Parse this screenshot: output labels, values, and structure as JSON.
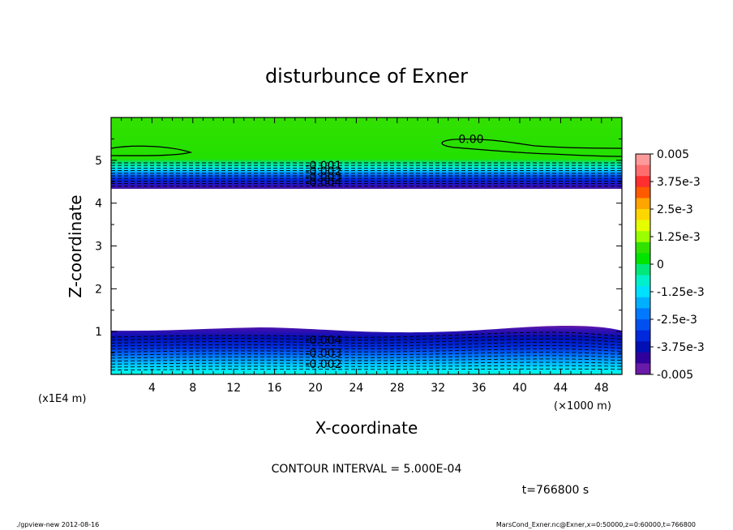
{
  "chart_data": {
    "type": "contour",
    "title": "disturbunce of Exner",
    "xlabel": "X-coordinate",
    "ylabel": "Z-coordinate",
    "x_unit": "(×1000 m)",
    "z_unit": "(x1E4 m)",
    "xlim": [
      0,
      50
    ],
    "ylim": [
      0,
      6
    ],
    "x_ticks": [
      4,
      8,
      12,
      16,
      20,
      24,
      28,
      32,
      36,
      40,
      44,
      48
    ],
    "y_ticks": [
      1,
      2,
      3,
      4,
      5
    ],
    "contour_interval_text": "CONTOUR INTERVAL = 5.000E-04",
    "time_text": "t=766800 s",
    "contour_labels": [
      {
        "text": "0.00",
        "x": 34,
        "z": 5.5
      },
      {
        "text": "-0.001",
        "x": 19,
        "z": 4.88
      },
      {
        "text": "-0.002",
        "x": 19,
        "z": 4.75
      },
      {
        "text": "-0.003",
        "x": 19,
        "z": 4.62
      },
      {
        "text": "-0.004",
        "x": 19,
        "z": 4.5
      },
      {
        "text": "-0.004",
        "x": 19,
        "z": 0.8
      },
      {
        "text": "-0.003",
        "x": 19,
        "z": 0.5
      },
      {
        "text": "-0.002",
        "x": 19,
        "z": 0.25
      }
    ],
    "colorbar": {
      "levels": [
        "0.005",
        "3.75e-3",
        "2.5e-3",
        "1.25e-3",
        "0",
        "-1.25e-3",
        "-2.5e-3",
        "-3.75e-3",
        "-0.005"
      ],
      "colors": [
        "#ff9a9a",
        "#ff6e6e",
        "#ff2f2f",
        "#ff5a00",
        "#ffa500",
        "#ffd700",
        "#e6ff00",
        "#9aff00",
        "#31e100",
        "#00e400",
        "#00e87a",
        "#00f0cc",
        "#00e0ff",
        "#00b0ff",
        "#0078ff",
        "#0050f0",
        "#0028dc",
        "#0010b4",
        "#30009c",
        "#6a1aa8"
      ]
    },
    "regions": {
      "top_band_z": [
        4.35,
        6.0
      ],
      "bottom_band_z": [
        0,
        1.05
      ]
    }
  },
  "footer": {
    "left": "./gpview-new 2012-08-16",
    "right": "MarsCond_Exner.nc@Exner,x=0:50000,z=0:60000,t=766800"
  }
}
